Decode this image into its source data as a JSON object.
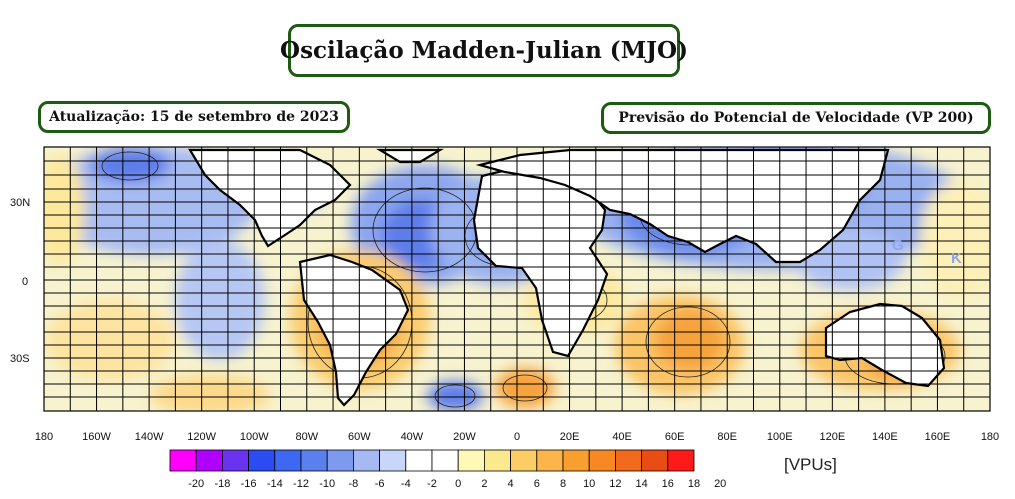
{
  "title": "Oscilação Madden-Julian (MJO)",
  "update_label": "Atualização: 15 de setembro de 2023",
  "variable_label": "Previsão do Potencial de Velocidade (VP 200)",
  "map_markers": [
    "G",
    "K"
  ],
  "lon_ticks": [
    "180",
    "160W",
    "140W",
    "120W",
    "100W",
    "80W",
    "60W",
    "40W",
    "20W",
    "0",
    "20E",
    "40E",
    "60E",
    "80E",
    "100E",
    "120E",
    "140E",
    "160E",
    "180"
  ],
  "lat_ticks": [
    "30N",
    "0",
    "30S"
  ],
  "colorbar": {
    "units": "[VPUs]",
    "labels": [
      "-20",
      "-18",
      "-16",
      "-14",
      "-12",
      "-10",
      "-8",
      "-6",
      "-4",
      "-2",
      "0",
      "2",
      "4",
      "6",
      "8",
      "10",
      "12",
      "14",
      "16",
      "18",
      "20"
    ],
    "colors": [
      "#ff00ff",
      "#b000ff",
      "#6a33f0",
      "#2b4cf0",
      "#3f68f2",
      "#5a80ee",
      "#7d9aee",
      "#a7b9f4",
      "#c8d6fa",
      "#ffffff",
      "#ffffff",
      "#fff9b8",
      "#fde98d",
      "#fccc65",
      "#fbb54a",
      "#f99f2f",
      "#f78822",
      "#f26b1c",
      "#e84d14",
      "#ff1a1a"
    ],
    "neutral_color": "#f4f1d4"
  }
}
